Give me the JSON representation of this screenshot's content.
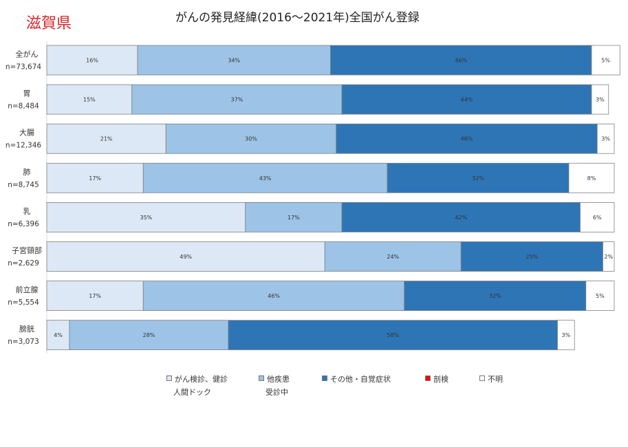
{
  "region": "滋賀県",
  "title": "がんの発見経緯(2016〜2021年)全国がん登録",
  "chart_data": {
    "type": "bar",
    "orientation": "horizontal-stacked-100",
    "categories": [
      {
        "name": "全がん",
        "n": "n=73,674"
      },
      {
        "name": "胃",
        "n": "n=8,484"
      },
      {
        "name": "大腸",
        "n": "n=12,346"
      },
      {
        "name": "肺",
        "n": "n=8,745"
      },
      {
        "name": "乳",
        "n": "n=6,396"
      },
      {
        "name": "子宮頸部",
        "n": "n=2,629"
      },
      {
        "name": "前立腺",
        "n": "n=5,554"
      },
      {
        "name": "膀胱",
        "n": "n=3,073"
      }
    ],
    "series": [
      {
        "name": "がん検診、健診人間ドック",
        "legend_lines": [
          "がん検診、健診",
          "人間ドック"
        ],
        "color": "#dce8f5",
        "values": [
          16,
          15,
          21,
          17,
          35,
          49,
          17,
          4
        ]
      },
      {
        "name": "他疾患受診中",
        "legend_lines": [
          "他疾患",
          "受診中"
        ],
        "color": "#9dc3e6",
        "values": [
          34,
          37,
          30,
          43,
          17,
          24,
          46,
          28
        ]
      },
      {
        "name": "その他・自覚症状",
        "legend_lines": [
          "その他・自覚症状"
        ],
        "color": "#2e75b6",
        "values": [
          46,
          44,
          46,
          32,
          42,
          25,
          32,
          58
        ]
      },
      {
        "name": "剖検",
        "legend_lines": [
          "剖検"
        ],
        "color": "#ff0000",
        "values": [
          0,
          0,
          0,
          0,
          0,
          0,
          0,
          0
        ]
      },
      {
        "name": "不明",
        "legend_lines": [
          "不明"
        ],
        "color": "#ffffff",
        "values": [
          5,
          3,
          3,
          8,
          6,
          2,
          5,
          3
        ]
      }
    ],
    "value_format": "{v}%",
    "xlim": [
      0,
      100
    ],
    "legend_position": "bottom"
  }
}
